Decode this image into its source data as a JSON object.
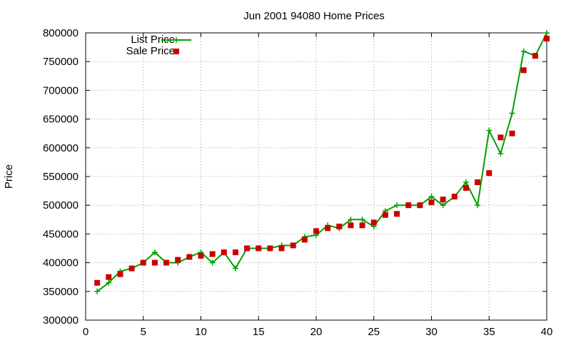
{
  "chart_data": {
    "type": "line",
    "title": "Jun 2001 94080 Home Prices",
    "xlabel": "",
    "ylabel": "Price",
    "xlim": [
      0,
      40
    ],
    "ylim": [
      300000,
      800000
    ],
    "xticks": [
      0,
      5,
      10,
      15,
      20,
      25,
      30,
      35,
      40
    ],
    "yticks": [
      300000,
      350000,
      400000,
      450000,
      500000,
      550000,
      600000,
      650000,
      700000,
      750000,
      800000
    ],
    "grid": true,
    "legend_position": "top-left",
    "series": [
      {
        "name": "List Price",
        "style": "line-with-plus-markers",
        "color": "#00a000",
        "x": [
          1,
          2,
          3,
          4,
          5,
          6,
          7,
          8,
          9,
          10,
          11,
          12,
          13,
          14,
          15,
          16,
          17,
          18,
          19,
          20,
          21,
          22,
          23,
          24,
          25,
          26,
          27,
          28,
          29,
          30,
          31,
          32,
          33,
          34,
          35,
          36,
          37,
          38,
          39,
          40
        ],
        "y": [
          350000,
          365000,
          385000,
          390000,
          400000,
          418000,
          400000,
          400000,
          410000,
          418000,
          400000,
          418000,
          390000,
          425000,
          425000,
          425000,
          430000,
          430000,
          445000,
          448000,
          465000,
          460000,
          475000,
          475000,
          463000,
          490000,
          500000,
          500000,
          500000,
          515000,
          500000,
          515000,
          540000,
          500000,
          630000,
          590000,
          660000,
          768000,
          760000,
          800000
        ]
      },
      {
        "name": "Sale Price",
        "style": "square-markers",
        "color": "#cc0000",
        "x": [
          1,
          2,
          3,
          4,
          5,
          6,
          7,
          8,
          9,
          10,
          11,
          12,
          13,
          14,
          15,
          16,
          17,
          18,
          19,
          20,
          21,
          22,
          23,
          24,
          25,
          26,
          27,
          28,
          29,
          30,
          31,
          32,
          33,
          34,
          35,
          36,
          37,
          38,
          39,
          40
        ],
        "y": [
          365000,
          375000,
          380000,
          390000,
          400000,
          400000,
          400000,
          405000,
          410000,
          412000,
          415000,
          418000,
          418000,
          425000,
          425000,
          425000,
          425000,
          430000,
          440000,
          455000,
          460000,
          463000,
          465000,
          465000,
          470000,
          483000,
          485000,
          500000,
          500000,
          505000,
          510000,
          515000,
          530000,
          540000,
          556000,
          618000,
          625000,
          735000,
          760000,
          790000
        ]
      }
    ]
  }
}
